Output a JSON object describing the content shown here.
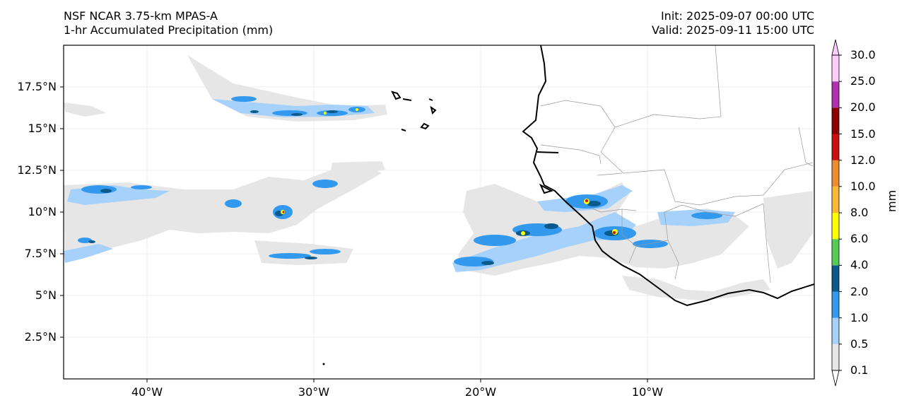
{
  "header": {
    "model": "NSF NCAR 3.75-km MPAS-A",
    "field": "1-hr Accumulated Precipitation (mm)",
    "init": "Init: 2025-09-07 00:00 UTC",
    "valid": "Valid: 2025-09-11 15:00 UTC"
  },
  "map": {
    "lon_range": [
      -45,
      0
    ],
    "lat_range": [
      0,
      20
    ],
    "lat_ticks": [
      {
        "value": 17.5,
        "label": "17.5°N"
      },
      {
        "value": 15,
        "label": "15°N"
      },
      {
        "value": 12.5,
        "label": "12.5°N"
      },
      {
        "value": 10,
        "label": "10°N"
      },
      {
        "value": 7.5,
        "label": "7.5°N"
      },
      {
        "value": 5,
        "label": "5°N"
      },
      {
        "value": 2.5,
        "label": "2.5°N"
      }
    ],
    "lon_ticks": [
      {
        "value": -40,
        "label": "40°W"
      },
      {
        "value": -30,
        "label": "30°W"
      },
      {
        "value": -20,
        "label": "20°W"
      },
      {
        "value": -10,
        "label": "10°W"
      }
    ]
  },
  "colorbar": {
    "unit": "mm",
    "levels": [
      {
        "label": "0.1",
        "color": "#e6e6e6"
      },
      {
        "label": "0.5",
        "color": "#a6d1fa"
      },
      {
        "label": "1.0",
        "color": "#3399ee"
      },
      {
        "label": "2.0",
        "color": "#0a5a8c"
      },
      {
        "label": "4.0",
        "color": "#55cc55"
      },
      {
        "label": "6.0",
        "color": "#ffff00"
      },
      {
        "label": "8.0",
        "color": "#f8b838"
      },
      {
        "label": "10.0",
        "color": "#ee8c30"
      },
      {
        "label": "12.0",
        "color": "#cc1010"
      },
      {
        "label": "15.0",
        "color": "#8c0000"
      },
      {
        "label": "20.0",
        "color": "#b030b0"
      },
      {
        "label": "25.0",
        "color": "#ffccff"
      }
    ],
    "top_label": "30.0"
  }
}
